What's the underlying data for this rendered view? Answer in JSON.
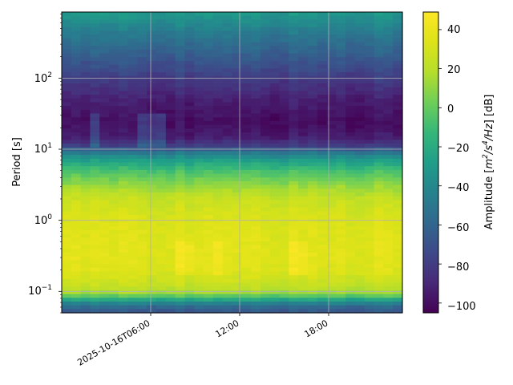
{
  "chart_data": {
    "type": "heatmap",
    "title": "",
    "ylabel": "Period [s]",
    "xlabel": "",
    "y_scale": "log",
    "ylim": [
      0.05,
      850
    ],
    "x_tick_labels": [
      "2025-10-16T06:00",
      "12:00",
      "18:00"
    ],
    "y_tick_labels": [
      {
        "base": "10",
        "exp": "2"
      },
      {
        "base": "10",
        "exp": "1"
      },
      {
        "base": "10",
        "exp": "0"
      },
      {
        "base": "10",
        "exp": "−1"
      }
    ],
    "grid": true,
    "colormap": "viridis",
    "colorbar": {
      "label_parts": [
        {
          "text": "Amplitude [",
          "sup": false
        },
        {
          "text": "m",
          "sup": false,
          "italic": true
        },
        {
          "text": "2",
          "sup": true,
          "italic": true
        },
        {
          "text": "/",
          "sup": false,
          "italic": true
        },
        {
          "text": "s",
          "sup": false,
          "italic": true
        },
        {
          "text": "4",
          "sup": true,
          "italic": true
        },
        {
          "text": "/",
          "sup": false,
          "italic": true
        },
        {
          "text": "Hz",
          "sup": false,
          "italic": true
        },
        {
          "text": "] [dB]",
          "sup": false
        }
      ],
      "range": [
        -105,
        49
      ],
      "ticks": [
        "40",
        "20",
        "0",
        "−20",
        "−40",
        "−60",
        "−80",
        "−100"
      ]
    },
    "amplitude_profile_db": [
      {
        "period_s": 0.05,
        "db": -70
      },
      {
        "period_s": 0.06,
        "db": -58
      },
      {
        "period_s": 0.07,
        "db": -40
      },
      {
        "period_s": 0.08,
        "db": -15
      },
      {
        "period_s": 0.09,
        "db": 5
      },
      {
        "period_s": 0.1,
        "db": 18
      },
      {
        "period_s": 0.13,
        "db": 26
      },
      {
        "period_s": 0.2,
        "db": 34
      },
      {
        "period_s": 0.3,
        "db": 36
      },
      {
        "period_s": 0.5,
        "db": 35
      },
      {
        "period_s": 1.0,
        "db": 33
      },
      {
        "period_s": 2.0,
        "db": 25
      },
      {
        "period_s": 3.0,
        "db": 12
      },
      {
        "period_s": 5.0,
        "db": -8
      },
      {
        "period_s": 7.0,
        "db": -28
      },
      {
        "period_s": 9.0,
        "db": -50
      },
      {
        "period_s": 11.0,
        "db": -78
      },
      {
        "period_s": 15.0,
        "db": -95
      },
      {
        "period_s": 25.0,
        "db": -100
      },
      {
        "period_s": 50.0,
        "db": -93
      },
      {
        "period_s": 100.0,
        "db": -80
      },
      {
        "period_s": 200.0,
        "db": -65
      },
      {
        "period_s": 400.0,
        "db": -50
      },
      {
        "period_s": 850.0,
        "db": -30
      }
    ]
  }
}
